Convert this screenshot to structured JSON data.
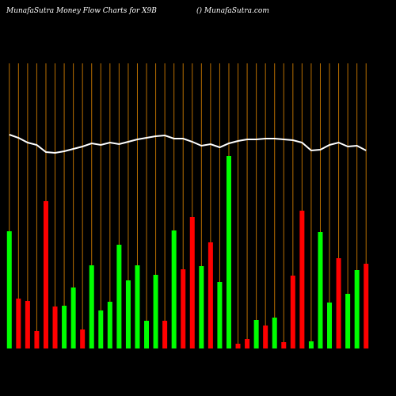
{
  "chart_data": {
    "type": "bar",
    "title": "MunafaSutra  Money Flow  Charts for X9B",
    "subtitle": "() MunafaSutra.com",
    "categories": [
      null,
      null,
      null,
      null,
      null,
      null,
      null,
      null,
      null,
      null,
      null,
      null,
      null,
      null,
      null,
      null,
      null,
      null,
      null,
      null,
      null,
      null,
      null,
      null,
      null,
      null,
      null,
      null,
      null,
      null,
      null,
      null,
      null,
      null,
      null,
      null,
      null,
      null,
      null,
      null
    ],
    "series": [
      {
        "values": [
          148,
          63,
          60,
          22,
          186,
          53,
          54,
          77,
          24,
          105,
          48,
          59,
          131,
          86,
          105,
          35,
          93,
          35,
          149,
          100,
          166,
          104,
          134,
          84,
          243,
          6,
          12,
          36,
          29,
          39,
          8,
          92,
          174,
          9,
          147,
          58,
          114,
          69,
          99,
          107
        ],
        "colors": [
          "#00ff00",
          "#ff0000",
          "#ff0000",
          "#ff0000",
          "#ff0000",
          "#ff0000",
          "#00ff00",
          "#00ff00",
          "#ff0000",
          "#00ff00",
          "#00ff00",
          "#00ff00",
          "#00ff00",
          "#00ff00",
          "#00ff00",
          "#00ff00",
          "#00ff00",
          "#ff0000",
          "#00ff00",
          "#ff0000",
          "#ff0000",
          "#00ff00",
          "#ff0000",
          "#00ff00",
          "#00ff00",
          "#ff0000",
          "#ff0000",
          "#00ff00",
          "#ff0000",
          "#00ff00",
          "#ff0000",
          "#ff0000",
          "#ff0000",
          "#00ff00",
          "#00ff00",
          "#00ff00",
          "#ff0000",
          "#00ff00",
          "#00ff00",
          "#ff0000"
        ]
      },
      {
        "type": "line",
        "color": "#ffffff",
        "values": [
          270,
          266,
          260,
          257,
          248,
          247,
          249,
          252,
          255,
          259,
          257,
          260,
          258,
          261,
          264,
          266,
          268,
          269,
          265,
          265,
          261,
          256,
          258,
          254,
          259,
          262,
          264,
          264,
          265,
          265,
          264,
          263,
          260,
          250,
          251,
          257,
          260,
          255,
          256,
          250
        ]
      }
    ],
    "ylim": [
      0,
      360
    ],
    "grid_color": "#b86e00"
  }
}
